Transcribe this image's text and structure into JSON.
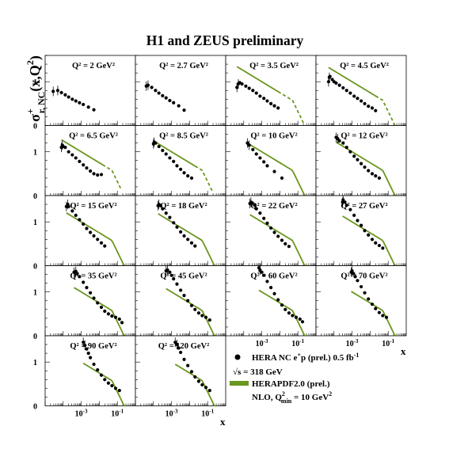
{
  "title": "H1 and ZEUS preliminary",
  "colors": {
    "data": "#000000",
    "fit": "#6b961f",
    "axis": "#000000",
    "frame_bg": "#ffffff"
  },
  "chart_data": {
    "type": "scatter",
    "title": "H1 and ZEUS preliminary",
    "ylabel": {
      "sigma": "σ",
      "sup": "+",
      "sub": "r, NC",
      "rest": "(x,Q",
      "q2sup": "2",
      "close": ")"
    },
    "xlabel": "x",
    "xscale": "log",
    "xlim": [
      1e-05,
      1
    ],
    "ylim": [
      0,
      1.6
    ],
    "y_ticks": [
      "0",
      "1"
    ],
    "x_tick_labels": [
      {
        "base": "10",
        "exp": "-3",
        "value": 0.001
      },
      {
        "base": "10",
        "exp": "-1",
        "value": 0.1
      }
    ],
    "grid": false,
    "legend": {
      "position": "bottom-right",
      "entries": [
        {
          "kind": "marker",
          "label": "HERA NC e",
          "sup": "+",
          "label2": "p (prel.) 0.5 fb",
          "sup2": "-1"
        },
        {
          "kind": "text",
          "pre": "√s = 318 GeV"
        },
        {
          "kind": "line",
          "label": "HERAPDF2.0 (prel.)"
        },
        {
          "kind": "text",
          "pre": "NLO, Q",
          "sub": "min",
          "sup": "2",
          "post": " = 10 GeV",
          "sup_post": "2"
        }
      ]
    },
    "panels": [
      {
        "q2": "2",
        "label": "Q² = 2 GeV²",
        "x": [
          2.8e-05,
          5e-05,
          8e-05,
          0.00013,
          0.0002,
          0.00032,
          0.0005,
          0.0008,
          0.0013,
          0.0025,
          0.005
        ],
        "y": [
          0.78,
          0.8,
          0.75,
          0.7,
          0.65,
          0.6,
          0.56,
          0.52,
          0.48,
          0.42,
          0.36
        ],
        "fit": null
      },
      {
        "q2": "2.7",
        "label": "Q² = 2.7 GeV²",
        "x": [
          4e-05,
          5e-05,
          8e-05,
          0.00013,
          0.0002,
          0.00032,
          0.0005,
          0.0008,
          0.0013,
          0.0025,
          0.005
        ],
        "y": [
          0.9,
          0.92,
          0.87,
          0.8,
          0.74,
          0.68,
          0.63,
          0.57,
          0.52,
          0.45,
          0.35
        ],
        "fit": null
      },
      {
        "q2": "3.5",
        "label": "Q² = 3.5 GeV²",
        "x": [
          4.2e-05,
          5e-05,
          6e-05,
          8e-05,
          0.00013,
          0.0002,
          0.00032,
          0.0005,
          0.0008,
          0.0013,
          0.002,
          0.0032,
          0.005,
          0.008
        ],
        "y": [
          0.87,
          0.95,
          0.98,
          0.95,
          0.9,
          0.85,
          0.8,
          0.74,
          0.67,
          0.62,
          0.56,
          0.5,
          0.45,
          0.4
        ],
        "fit": {
          "solid_to": 0.008,
          "dashed_to": 0.2
        }
      },
      {
        "q2": "4.5",
        "label": "Q² = 4.5 GeV²",
        "x": [
          5e-05,
          5.5e-05,
          6e-05,
          8e-05,
          0.0001,
          0.00013,
          0.0002,
          0.00032,
          0.0005,
          0.0008,
          0.0013,
          0.002,
          0.0032,
          0.005,
          0.008,
          0.013,
          0.02
        ],
        "y": [
          1.0,
          1.1,
          1.12,
          1.05,
          1.0,
          0.97,
          0.92,
          0.86,
          0.8,
          0.74,
          0.67,
          0.62,
          0.56,
          0.5,
          0.44,
          0.4,
          0.34
        ],
        "fit": {
          "solid_to": 0.02,
          "dashed_to": 0.25
        }
      },
      {
        "q2": "6.5",
        "label": "Q² = 6.5 GeV²",
        "x": [
          8e-05,
          9e-05,
          0.0001,
          0.00013,
          0.0002,
          0.00032,
          0.0005,
          0.0008,
          0.0013,
          0.002,
          0.0032,
          0.005,
          0.008,
          0.013
        ],
        "y": [
          1.1,
          1.15,
          1.12,
          1.1,
          1.0,
          0.93,
          0.86,
          0.78,
          0.7,
          0.63,
          0.56,
          0.5,
          0.47,
          0.48
        ],
        "fit": {
          "solid_to": 0.015,
          "dashed_to": 0.15
        }
      },
      {
        "q2": "8.5",
        "label": "Q² = 8.5 GeV²",
        "x": [
          0.0001,
          0.00011,
          0.00013,
          0.0002,
          0.00032,
          0.0005,
          0.0008,
          0.0013,
          0.002,
          0.0032,
          0.005,
          0.008,
          0.013
        ],
        "y": [
          1.18,
          1.22,
          1.2,
          1.12,
          1.03,
          0.95,
          0.86,
          0.78,
          0.68,
          0.6,
          0.52,
          0.45,
          0.4
        ],
        "fit": {
          "solid_to": 0.02,
          "dashed_to": 0.2
        }
      },
      {
        "q2": "10",
        "label": "Q² = 10 GeV²",
        "x": [
          0.00016,
          0.0002,
          0.00032,
          0.0005,
          0.0008,
          0.0013,
          0.002,
          0.005,
          0.013
        ],
        "y": [
          1.2,
          1.15,
          1.05,
          0.95,
          0.86,
          0.77,
          0.68,
          0.55,
          0.4
        ],
        "fit": {
          "solid_to": 0.3,
          "dashed_to": null
        }
      },
      {
        "q2": "12",
        "label": "Q² = 12 GeV²",
        "x": [
          0.00013,
          0.00016,
          0.0002,
          0.00032,
          0.0005,
          0.0008,
          0.0013,
          0.002,
          0.0032,
          0.005,
          0.008,
          0.013,
          0.02,
          0.032
        ],
        "y": [
          1.33,
          1.3,
          1.25,
          1.2,
          1.1,
          1.0,
          0.9,
          0.82,
          0.73,
          0.65,
          0.57,
          0.5,
          0.45,
          0.4
        ],
        "fit": {
          "solid_to": 0.3,
          "dashed_to": null
        }
      },
      {
        "q2": "15",
        "label": "Q² = 15 GeV²",
        "x": [
          0.00015,
          0.00018,
          0.0002,
          0.00032,
          0.0005,
          0.0008,
          0.0013,
          0.002,
          0.0032,
          0.005,
          0.008,
          0.013,
          0.02
        ],
        "y": [
          1.35,
          1.4,
          1.35,
          1.25,
          1.15,
          1.05,
          0.95,
          0.85,
          0.76,
          0.68,
          0.6,
          0.52,
          0.45
        ],
        "fit": {
          "solid_to": 0.3,
          "dashed_to": null
        }
      },
      {
        "q2": "18",
        "label": "Q² = 18 GeV²",
        "x": [
          0.00018,
          0.0002,
          0.00025,
          0.00032,
          0.0005,
          0.0008,
          0.0013,
          0.002,
          0.0032,
          0.005,
          0.008,
          0.013,
          0.02
        ],
        "y": [
          1.37,
          1.4,
          1.37,
          1.3,
          1.2,
          1.1,
          0.98,
          0.88,
          0.77,
          0.68,
          0.6,
          0.52,
          0.45
        ],
        "fit": {
          "solid_to": 0.3,
          "dashed_to": null
        }
      },
      {
        "q2": "22",
        "label": "Q² = 22 GeV²",
        "x": [
          0.00022,
          0.00025,
          0.0003,
          0.0004,
          0.0005,
          0.0008,
          0.0013,
          0.002,
          0.0032,
          0.005,
          0.008,
          0.013,
          0.02,
          0.032
        ],
        "y": [
          1.42,
          1.45,
          1.43,
          1.38,
          1.3,
          1.2,
          1.08,
          0.97,
          0.86,
          0.76,
          0.67,
          0.58,
          0.5,
          0.44
        ],
        "fit": {
          "solid_to": 0.3,
          "dashed_to": null
        }
      },
      {
        "q2": "27",
        "label": "Q² = 27 GeV²",
        "x": [
          0.0003,
          0.00032,
          0.0004,
          0.0005,
          0.0008,
          0.0013,
          0.002,
          0.0032,
          0.005,
          0.008,
          0.013,
          0.02,
          0.032,
          0.05
        ],
        "y": [
          1.45,
          1.5,
          1.45,
          1.38,
          1.28,
          1.15,
          1.03,
          0.92,
          0.8,
          0.7,
          0.6,
          0.52,
          0.46,
          0.4
        ],
        "fit": {
          "solid_to": 0.3,
          "dashed_to": null
        }
      },
      {
        "q2": "35",
        "label": "Q² = 35 GeV²",
        "x": [
          0.0004,
          0.0005,
          0.0006,
          0.0008,
          0.0013,
          0.002,
          0.0032,
          0.005,
          0.008,
          0.013,
          0.02,
          0.032,
          0.05,
          0.08,
          0.13,
          0.18
        ],
        "y": [
          1.45,
          1.47,
          1.42,
          1.35,
          1.22,
          1.1,
          0.98,
          0.86,
          0.75,
          0.65,
          0.56,
          0.5,
          0.45,
          0.42,
          0.38,
          0.3
        ],
        "fit": {
          "solid_to": 0.3,
          "dashed_to": null
        }
      },
      {
        "q2": "45",
        "label": "Q² = 45 GeV²",
        "x": [
          0.0005,
          0.0006,
          0.0008,
          0.001,
          0.0013,
          0.002,
          0.0032,
          0.005,
          0.008,
          0.013,
          0.02,
          0.032,
          0.05,
          0.08,
          0.13
        ],
        "y": [
          1.48,
          1.5,
          1.45,
          1.38,
          1.3,
          1.18,
          1.04,
          0.92,
          0.8,
          0.69,
          0.6,
          0.52,
          0.46,
          0.42,
          0.36
        ],
        "fit": {
          "solid_to": 0.3,
          "dashed_to": null
        }
      },
      {
        "q2": "60",
        "label": "Q² = 60 GeV²",
        "x": [
          0.0007,
          0.0008,
          0.001,
          0.0013,
          0.002,
          0.0032,
          0.005,
          0.008,
          0.013,
          0.02,
          0.032,
          0.05,
          0.08,
          0.13,
          0.18
        ],
        "y": [
          1.55,
          1.5,
          1.45,
          1.38,
          1.24,
          1.1,
          0.96,
          0.82,
          0.7,
          0.6,
          0.52,
          0.46,
          0.42,
          0.38,
          0.32
        ],
        "fit": {
          "solid_to": 0.3,
          "dashed_to": null
        }
      },
      {
        "q2": "70",
        "label": "Q² = 70 GeV²",
        "x": [
          0.0009,
          0.001,
          0.0012,
          0.0015,
          0.002,
          0.0032,
          0.005,
          0.008,
          0.013,
          0.02,
          0.032,
          0.05,
          0.08
        ],
        "y": [
          1.45,
          1.48,
          1.42,
          1.35,
          1.26,
          1.12,
          0.98,
          0.84,
          0.72,
          0.62,
          0.53,
          0.46,
          0.42
        ],
        "fit": {
          "solid_to": 0.3,
          "dashed_to": null
        }
      },
      {
        "q2": "90",
        "label": "Q² = 90 GeV²",
        "x": [
          0.0013,
          0.0016,
          0.002,
          0.0025,
          0.0032,
          0.005,
          0.008,
          0.013,
          0.02,
          0.032,
          0.05,
          0.08,
          0.13
        ],
        "y": [
          1.45,
          1.38,
          1.3,
          1.2,
          1.1,
          0.95,
          0.82,
          0.7,
          0.6,
          0.52,
          0.46,
          0.4,
          0.35
        ],
        "fit": {
          "solid_to": 0.3,
          "dashed_to": null
        }
      },
      {
        "q2": "120",
        "label": "Q² = 120 GeV²",
        "x": [
          0.0016,
          0.002,
          0.0025,
          0.0032,
          0.005,
          0.008,
          0.013,
          0.02,
          0.032,
          0.05,
          0.08,
          0.13
        ],
        "y": [
          1.45,
          1.4,
          1.32,
          1.22,
          1.06,
          0.92,
          0.78,
          0.66,
          0.56,
          0.48,
          0.42,
          0.35
        ],
        "fit": {
          "solid_to": 0.3,
          "dashed_to": null
        }
      }
    ]
  }
}
